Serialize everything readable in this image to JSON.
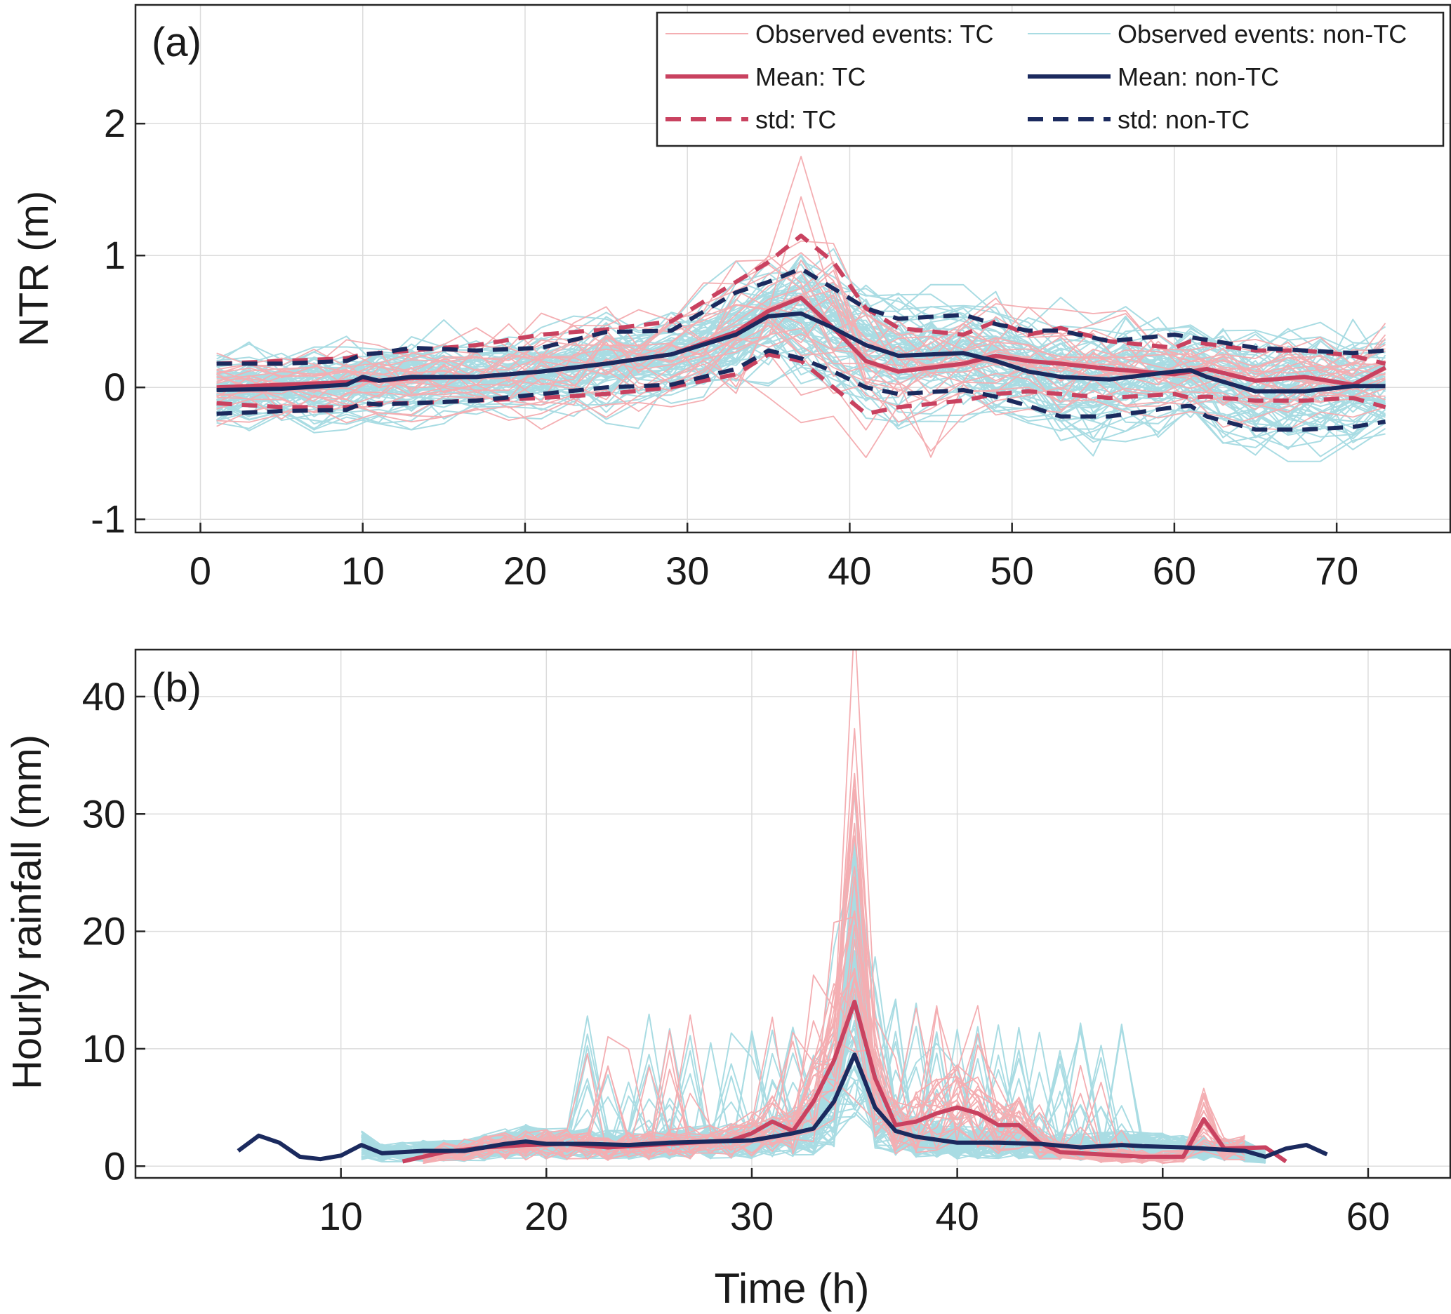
{
  "chart_data": [
    {
      "type": "line",
      "panel_label": "(a)",
      "ylabel": "NTR (m)",
      "xlabel": "",
      "xlim": [
        -4,
        77
      ],
      "ylim": [
        -1.1,
        2.9
      ],
      "grid": true,
      "xticks": [
        0,
        10,
        20,
        30,
        40,
        50,
        60,
        70
      ],
      "yticks": [
        -1,
        0,
        1,
        2
      ],
      "legend": {
        "placement": "top-right",
        "entries": [
          {
            "key": "obs_tc",
            "label": "Observed events: TC"
          },
          {
            "key": "obs_ntc",
            "label": "Observed events: non-TC"
          },
          {
            "key": "mean_tc",
            "label": "Mean: TC"
          },
          {
            "key": "mean_ntc",
            "label": "Mean: non-TC"
          },
          {
            "key": "std_tc",
            "label": "std: TC"
          },
          {
            "key": "std_ntc",
            "label": "std: non-TC"
          }
        ]
      },
      "x": [
        1,
        5,
        9,
        10,
        11,
        13,
        17,
        21,
        25,
        29,
        33,
        35,
        37,
        39,
        41,
        43,
        47,
        49,
        51,
        53,
        56,
        60,
        61,
        62,
        65,
        68,
        71,
        73
      ],
      "series": [
        {
          "key": "mean_tc",
          "name": "Mean: TC",
          "values": [
            0.0,
            0.02,
            0.04,
            0.06,
            0.05,
            0.07,
            0.08,
            0.12,
            0.18,
            0.25,
            0.42,
            0.58,
            0.68,
            0.45,
            0.2,
            0.12,
            0.18,
            0.24,
            0.2,
            0.18,
            0.14,
            0.1,
            0.12,
            0.14,
            0.05,
            0.08,
            0.02,
            0.15
          ]
        },
        {
          "key": "mean_ntc",
          "name": "Mean: non-TC",
          "values": [
            -0.02,
            -0.01,
            0.02,
            0.08,
            0.05,
            0.08,
            0.08,
            0.12,
            0.18,
            0.25,
            0.4,
            0.54,
            0.56,
            0.45,
            0.32,
            0.24,
            0.26,
            0.2,
            0.12,
            0.08,
            0.06,
            0.12,
            0.13,
            0.08,
            -0.03,
            -0.03,
            0.01,
            0.01
          ]
        },
        {
          "key": "std_tc_upper",
          "name": "std: TC",
          "values": [
            0.18,
            0.2,
            0.22,
            0.25,
            0.26,
            0.28,
            0.32,
            0.4,
            0.44,
            0.5,
            0.8,
            0.95,
            1.15,
            0.95,
            0.6,
            0.45,
            0.4,
            0.5,
            0.4,
            0.45,
            0.35,
            0.3,
            0.35,
            0.33,
            0.28,
            0.28,
            0.24,
            0.18
          ]
        },
        {
          "key": "std_tc_lower",
          "name": "std: TC",
          "values": [
            -0.12,
            -0.15,
            -0.15,
            -0.14,
            -0.12,
            -0.12,
            -0.1,
            -0.08,
            -0.05,
            0.0,
            0.1,
            0.25,
            0.2,
            0.0,
            -0.2,
            -0.15,
            -0.1,
            -0.05,
            -0.03,
            -0.05,
            -0.08,
            -0.05,
            -0.08,
            -0.07,
            -0.1,
            -0.1,
            -0.08,
            -0.15
          ]
        },
        {
          "key": "std_ntc_upper",
          "name": "std: non-TC",
          "values": [
            0.18,
            0.18,
            0.2,
            0.25,
            0.26,
            0.3,
            0.28,
            0.3,
            0.42,
            0.43,
            0.72,
            0.8,
            0.9,
            0.75,
            0.6,
            0.52,
            0.55,
            0.48,
            0.43,
            0.43,
            0.35,
            0.4,
            0.38,
            0.36,
            0.3,
            0.28,
            0.26,
            0.28
          ]
        },
        {
          "key": "std_ntc_lower",
          "name": "std: non-TC",
          "values": [
            -0.2,
            -0.18,
            -0.17,
            -0.12,
            -0.13,
            -0.12,
            -0.1,
            -0.05,
            0.0,
            0.02,
            0.14,
            0.28,
            0.22,
            0.12,
            0.0,
            -0.05,
            -0.02,
            -0.07,
            -0.14,
            -0.22,
            -0.22,
            -0.15,
            -0.14,
            -0.22,
            -0.32,
            -0.32,
            -0.3,
            -0.26
          ]
        }
      ]
    },
    {
      "type": "line",
      "panel_label": "(b)",
      "ylabel": "Hourly rainfall (mm)",
      "xlabel": "Time (h)",
      "xlim": [
        0,
        64
      ],
      "ylim": [
        -1,
        44
      ],
      "grid": true,
      "xticks": [
        10,
        20,
        30,
        40,
        50,
        60
      ],
      "yticks": [
        0,
        10,
        20,
        30,
        40
      ],
      "series": [
        {
          "key": "mean_tc",
          "name": "Mean: TC",
          "x": [
            13,
            15,
            17,
            19,
            21,
            23,
            25,
            27,
            29,
            30,
            31,
            32,
            33,
            34,
            35,
            36,
            37,
            38,
            39,
            40,
            41,
            42,
            43,
            44,
            45,
            47,
            49,
            51,
            52,
            53,
            55,
            56
          ],
          "values": [
            0.4,
            1.2,
            1.6,
            1.8,
            1.9,
            1.6,
            1.8,
            2.0,
            2.2,
            2.8,
            3.8,
            3.0,
            5.5,
            9.0,
            14.0,
            7.5,
            3.5,
            3.8,
            4.5,
            5.0,
            4.5,
            3.5,
            3.5,
            2.0,
            1.2,
            1.0,
            0.8,
            0.8,
            4.0,
            1.5,
            1.6,
            0.4
          ]
        },
        {
          "key": "mean_ntc",
          "name": "Mean: non-TC",
          "x": [
            5,
            6,
            7,
            8,
            9,
            10,
            11,
            12,
            14,
            16,
            18,
            19,
            20,
            22,
            24,
            26,
            28,
            30,
            32,
            33,
            34,
            35,
            36,
            37,
            38,
            40,
            42,
            44,
            46,
            48,
            49,
            51,
            53,
            54,
            55,
            56,
            57,
            58
          ],
          "values": [
            1.3,
            2.6,
            2.0,
            0.8,
            0.6,
            0.9,
            1.8,
            1.1,
            1.3,
            1.3,
            1.9,
            2.1,
            1.9,
            1.9,
            1.8,
            2.0,
            2.1,
            2.2,
            2.8,
            3.2,
            5.5,
            9.5,
            5.0,
            3.0,
            2.5,
            2.0,
            2.0,
            1.9,
            1.6,
            1.8,
            1.7,
            1.6,
            1.4,
            1.3,
            0.8,
            1.5,
            1.8,
            1.0
          ]
        }
      ]
    }
  ]
}
